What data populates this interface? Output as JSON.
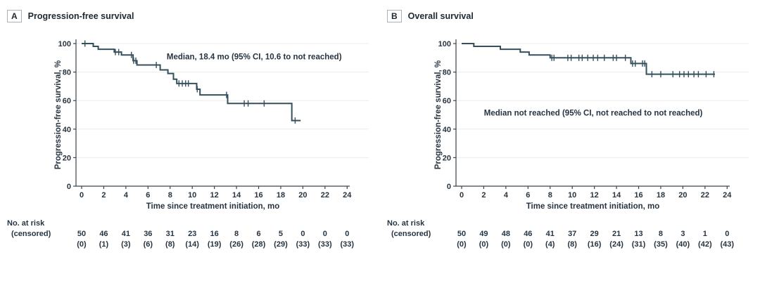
{
  "figure": {
    "background": "#ffffff",
    "text_color": "#273440",
    "axis_color": "#39444d",
    "grid_color": "#e9eced",
    "curve_color": "#35505d"
  },
  "chart_data": [
    {
      "type": "line",
      "subtype": "kaplan-meier-step",
      "panel_label": "A",
      "title": "Progression-free survival",
      "xlabel": "Time since treatment initiation, mo",
      "ylabel": "Progression-free survival, %",
      "annotation": "Median, 18.4 mo (95% CI, 10.6 to not reached)",
      "annotation_pos": {
        "t": 15.6,
        "pct": 91
      },
      "xlim": [
        0,
        24
      ],
      "ylim": [
        0,
        100
      ],
      "grid": "horizontal",
      "legend": "none",
      "x_ticks": [
        0,
        2,
        4,
        6,
        8,
        10,
        12,
        14,
        16,
        18,
        20,
        22,
        24
      ],
      "y_ticks": [
        0,
        20,
        40,
        60,
        80,
        100
      ],
      "start": [
        0,
        100
      ],
      "drops": [
        [
          1.05,
          98
        ],
        [
          1.5,
          96
        ],
        [
          2.95,
          94
        ],
        [
          3.6,
          92
        ],
        [
          4.65,
          88
        ],
        [
          5.0,
          85
        ],
        [
          7.1,
          81.5
        ],
        [
          7.8,
          79
        ],
        [
          8.3,
          75
        ],
        [
          8.6,
          72
        ],
        [
          10.4,
          68
        ],
        [
          10.7,
          64
        ],
        [
          13.2,
          58
        ],
        [
          19.0,
          46
        ]
      ],
      "end_t": 19.8,
      "censors": [
        [
          0.3,
          100
        ],
        [
          3.05,
          94
        ],
        [
          3.35,
          94
        ],
        [
          4.5,
          92
        ],
        [
          4.7,
          88
        ],
        [
          4.9,
          88
        ],
        [
          6.75,
          85
        ],
        [
          8.8,
          72
        ],
        [
          9.1,
          72
        ],
        [
          9.4,
          72
        ],
        [
          9.65,
          72
        ],
        [
          10.45,
          68
        ],
        [
          13.1,
          64
        ],
        [
          14.7,
          58
        ],
        [
          15.05,
          58
        ],
        [
          16.5,
          58
        ],
        [
          19.3,
          46
        ]
      ],
      "risk_label_lines": [
        "No. at risk",
        "(censored)"
      ],
      "risk_times": [
        0,
        2,
        4,
        6,
        8,
        10,
        12,
        14,
        16,
        18,
        20,
        22,
        24
      ],
      "risk": [
        "50",
        "46",
        "41",
        "36",
        "31",
        "23",
        "16",
        "8",
        "6",
        "5",
        "0",
        "0",
        "0"
      ],
      "censored": [
        "(0)",
        "(1)",
        "(3)",
        "(6)",
        "(8)",
        "(14)",
        "(19)",
        "(26)",
        "(28)",
        "(29)",
        "(33)",
        "(33)",
        "(33)"
      ]
    },
    {
      "type": "line",
      "subtype": "kaplan-meier-step",
      "panel_label": "B",
      "title": "Overall survival",
      "xlabel": "Time since treatment initiation, mo",
      "ylabel": "Progression-free survival, %",
      "annotation": "Median not reached (95% CI, not reached to not reached)",
      "annotation_pos": {
        "t": 11.9,
        "pct": 51.5
      },
      "xlim": [
        0,
        24
      ],
      "ylim": [
        0,
        100
      ],
      "grid": "horizontal",
      "legend": "none",
      "x_ticks": [
        0,
        2,
        4,
        6,
        8,
        10,
        12,
        14,
        16,
        18,
        20,
        22,
        24
      ],
      "y_ticks": [
        0,
        20,
        40,
        60,
        80,
        100
      ],
      "start": [
        0,
        100
      ],
      "drops": [
        [
          1.1,
          98
        ],
        [
          3.5,
          96
        ],
        [
          5.3,
          94
        ],
        [
          6.1,
          92
        ],
        [
          8.0,
          90
        ],
        [
          15.3,
          86
        ],
        [
          16.7,
          78.5
        ]
      ],
      "end_t": 22.9,
      "censors": [
        [
          8.15,
          90
        ],
        [
          8.35,
          90
        ],
        [
          9.6,
          90
        ],
        [
          9.9,
          90
        ],
        [
          10.6,
          90
        ],
        [
          10.9,
          90
        ],
        [
          11.4,
          90
        ],
        [
          11.9,
          90
        ],
        [
          12.3,
          90
        ],
        [
          12.9,
          90
        ],
        [
          13.7,
          90
        ],
        [
          14.0,
          90
        ],
        [
          14.8,
          90
        ],
        [
          15.45,
          86
        ],
        [
          15.7,
          86
        ],
        [
          16.35,
          86
        ],
        [
          16.55,
          86
        ],
        [
          17.2,
          78.5
        ],
        [
          18.0,
          78.5
        ],
        [
          19.1,
          78.5
        ],
        [
          19.7,
          78.5
        ],
        [
          20.1,
          78.5
        ],
        [
          20.5,
          78.5
        ],
        [
          21.0,
          78.5
        ],
        [
          21.4,
          78.5
        ],
        [
          22.1,
          78.5
        ],
        [
          22.8,
          78.5
        ]
      ],
      "risk_label_lines": [
        "No. at risk",
        "(censored)"
      ],
      "risk_times": [
        0,
        2,
        4,
        6,
        8,
        10,
        12,
        14,
        16,
        18,
        20,
        22,
        24
      ],
      "risk": [
        "50",
        "49",
        "48",
        "46",
        "41",
        "37",
        "29",
        "21",
        "13",
        "8",
        "3",
        "1",
        "0"
      ],
      "censored": [
        "(0)",
        "(0)",
        "(0)",
        "(0)",
        "(4)",
        "(8)",
        "(16)",
        "(24)",
        "(31)",
        "(35)",
        "(40)",
        "(42)",
        "(43)"
      ]
    }
  ]
}
